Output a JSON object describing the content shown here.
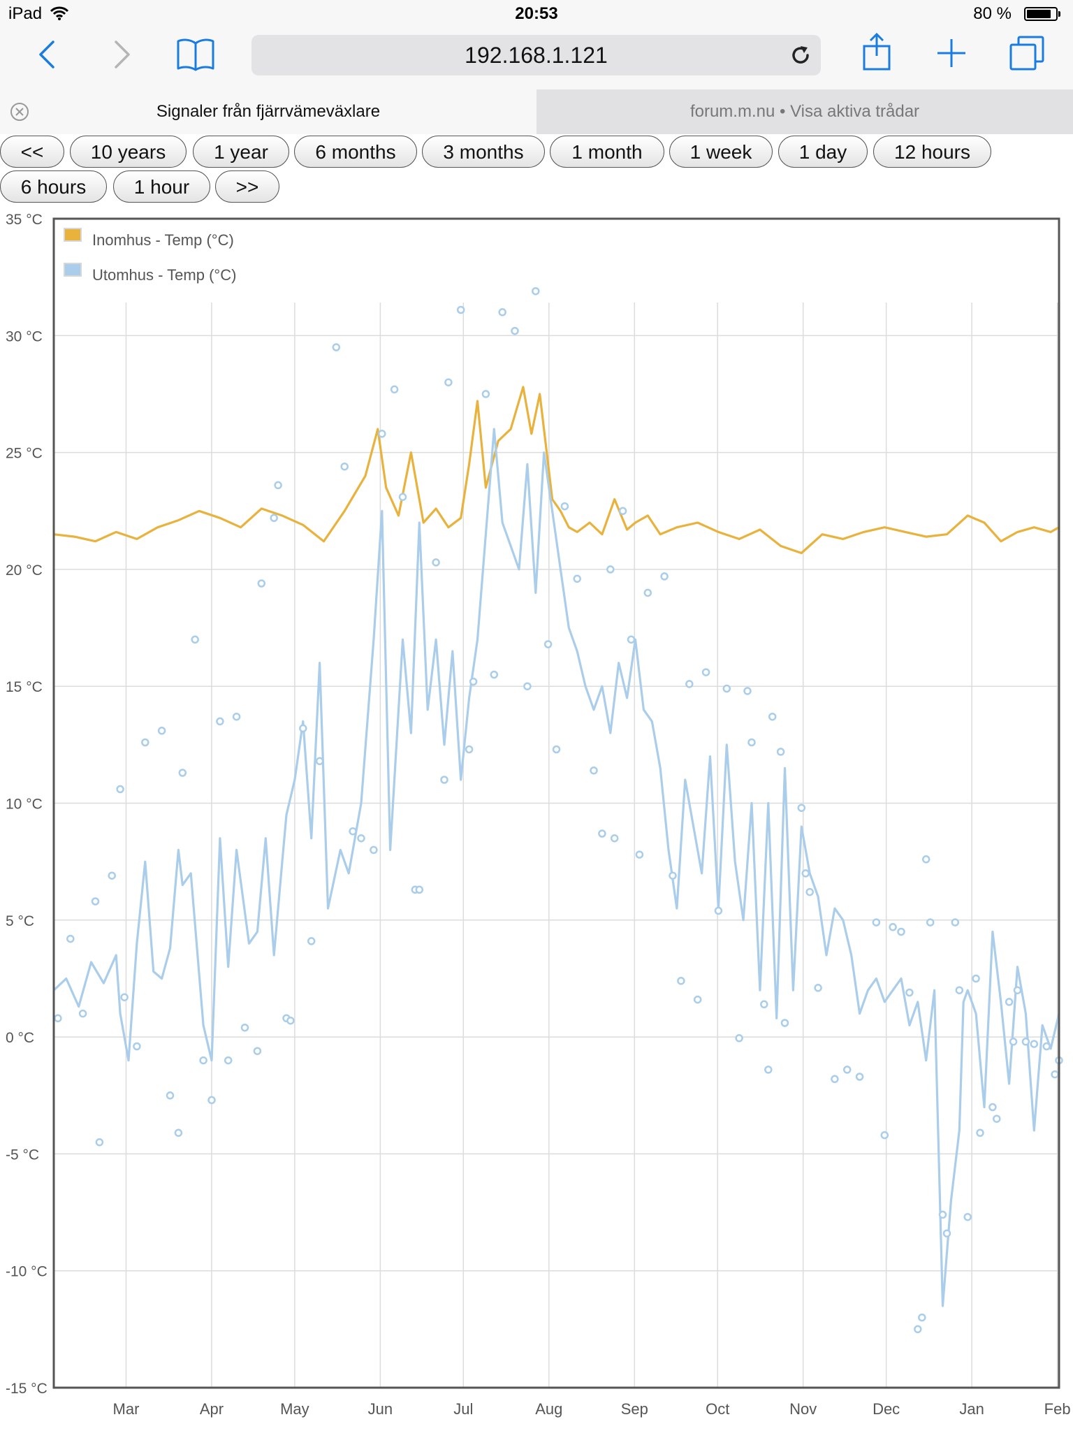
{
  "status_bar": {
    "device": "iPad",
    "time": "20:53",
    "battery": "80 %"
  },
  "browser": {
    "url": "192.168.1.121",
    "tabs": [
      {
        "label": "Signaler från fjärrvämeväxlare",
        "active": true
      },
      {
        "label": "forum.m.nu • Visa aktiva trådar",
        "active": false
      }
    ]
  },
  "range_buttons": [
    "<<",
    "10 years",
    "1 year",
    "6 months",
    "3 months",
    "1 month",
    "1 week",
    "1 day",
    "12 hours",
    "6 hours",
    "1 hour",
    ">>"
  ],
  "chart_data": {
    "type": "line",
    "title": "",
    "ylim": [
      -15,
      35
    ],
    "yticks": [
      35,
      30,
      25,
      20,
      15,
      10,
      5,
      0,
      -5,
      -10,
      -15
    ],
    "ytick_labels": [
      "35 °C",
      "30 °C",
      "25 °C",
      "20 °C",
      "15 °C",
      "10 °C",
      "5 °C",
      "0 °C",
      "-5 °C",
      "-10 °C",
      "-15 °C"
    ],
    "xlim": [
      0,
      12.1
    ],
    "xticks": [
      {
        "label": "Mar",
        "pos": 0.87
      },
      {
        "label": "Apr",
        "pos": 1.9
      },
      {
        "label": "May",
        "pos": 2.9
      },
      {
        "label": "Jun",
        "pos": 3.93
      },
      {
        "label": "Jul",
        "pos": 4.93
      },
      {
        "label": "Aug",
        "pos": 5.96
      },
      {
        "label": "Sep",
        "pos": 6.99
      },
      {
        "label": "Oct",
        "pos": 7.99
      },
      {
        "label": "Nov",
        "pos": 9.02
      },
      {
        "label": "Dec",
        "pos": 10.02
      },
      {
        "label": "Jan",
        "pos": 11.05
      },
      {
        "label": "Feb",
        "pos": 12.08
      }
    ],
    "legend": [
      "Inomhus - Temp (°C)",
      "Utomhus - Temp (°C)"
    ],
    "legend_position": "top-left",
    "grid": true,
    "series": [
      {
        "name": "Inomhus - Temp (°C)",
        "color": "#e8b23c",
        "x": [
          0,
          0.25,
          0.5,
          0.75,
          1.0,
          1.25,
          1.5,
          1.75,
          2.0,
          2.25,
          2.5,
          2.75,
          3.0,
          3.25,
          3.5,
          3.75,
          3.9,
          4.0,
          4.15,
          4.3,
          4.45,
          4.6,
          4.75,
          4.9,
          5.0,
          5.1,
          5.2,
          5.35,
          5.5,
          5.65,
          5.75,
          5.85,
          6.0,
          6.1,
          6.2,
          6.3,
          6.45,
          6.6,
          6.75,
          6.9,
          7.0,
          7.15,
          7.3,
          7.5,
          7.75,
          8.0,
          8.25,
          8.5,
          8.75,
          9.0,
          9.25,
          9.5,
          9.75,
          10.0,
          10.25,
          10.5,
          10.75,
          11.0,
          11.2,
          11.4,
          11.6,
          11.8,
          12.0,
          12.1
        ],
        "values": [
          21.5,
          21.4,
          21.2,
          21.6,
          21.3,
          21.8,
          22.1,
          22.5,
          22.2,
          21.8,
          22.6,
          22.3,
          21.9,
          21.2,
          22.5,
          24.0,
          26.0,
          23.5,
          22.3,
          25.0,
          22.0,
          22.6,
          21.8,
          22.2,
          24.5,
          27.2,
          23.5,
          25.5,
          26.0,
          27.8,
          25.8,
          27.5,
          23.0,
          22.5,
          21.8,
          21.6,
          22.0,
          21.5,
          23.0,
          21.7,
          22.0,
          22.3,
          21.5,
          21.8,
          22.0,
          21.6,
          21.3,
          21.7,
          21.0,
          20.7,
          21.5,
          21.3,
          21.6,
          21.8,
          21.6,
          21.4,
          21.5,
          22.3,
          22.0,
          21.2,
          21.6,
          21.8,
          21.6,
          21.8
        ]
      },
      {
        "name": "Utomhus - Temp (°C)",
        "color": "#a9cdea",
        "x": [
          0,
          0.15,
          0.3,
          0.45,
          0.6,
          0.75,
          0.8,
          0.9,
          1.0,
          1.1,
          1.2,
          1.3,
          1.4,
          1.5,
          1.55,
          1.65,
          1.8,
          1.9,
          2.0,
          2.1,
          2.2,
          2.35,
          2.45,
          2.55,
          2.65,
          2.75,
          2.8,
          2.9,
          3.0,
          3.1,
          3.2,
          3.3,
          3.45,
          3.55,
          3.7,
          3.85,
          3.95,
          4.05,
          4.2,
          4.3,
          4.4,
          4.5,
          4.6,
          4.7,
          4.8,
          4.9,
          5.0,
          5.1,
          5.2,
          5.3,
          5.4,
          5.5,
          5.6,
          5.7,
          5.8,
          5.9,
          6.0,
          6.1,
          6.2,
          6.3,
          6.4,
          6.5,
          6.6,
          6.7,
          6.8,
          6.9,
          7.0,
          7.1,
          7.2,
          7.3,
          7.4,
          7.5,
          7.6,
          7.7,
          7.8,
          7.9,
          8.0,
          8.1,
          8.2,
          8.3,
          8.4,
          8.5,
          8.6,
          8.7,
          8.8,
          8.9,
          9.0,
          9.1,
          9.2,
          9.3,
          9.4,
          9.5,
          9.6,
          9.7,
          9.8,
          9.9,
          10.0,
          10.1,
          10.2,
          10.3,
          10.4,
          10.5,
          10.6,
          10.7,
          10.8,
          10.9,
          10.95,
          11.0,
          11.1,
          11.2,
          11.3,
          11.4,
          11.5,
          11.6,
          11.7,
          11.8,
          11.9,
          12.0,
          12.1
        ],
        "values": [
          2.0,
          2.5,
          1.3,
          3.2,
          2.3,
          3.5,
          1.0,
          -1.0,
          4.0,
          7.5,
          2.8,
          2.5,
          3.8,
          8.0,
          6.5,
          7.0,
          0.5,
          -1.0,
          8.5,
          3.0,
          8.0,
          4.0,
          4.5,
          8.5,
          3.5,
          7.5,
          9.5,
          11.0,
          13.5,
          8.5,
          16.0,
          5.5,
          8.0,
          7.0,
          10.0,
          17.0,
          22.5,
          8.0,
          17.0,
          13.0,
          22.0,
          14.0,
          17.0,
          12.5,
          16.5,
          11.0,
          14.5,
          17.0,
          21.5,
          26.0,
          22.0,
          21.0,
          20.0,
          24.5,
          19.0,
          25.0,
          22.5,
          20.0,
          17.5,
          16.5,
          15.0,
          14.0,
          15.0,
          13.0,
          16.0,
          14.5,
          17.0,
          14.0,
          13.5,
          11.5,
          8.0,
          5.5,
          11.0,
          9.0,
          7.0,
          12.0,
          5.5,
          12.5,
          7.5,
          5.0,
          10.0,
          2.0,
          10.0,
          0.8,
          11.5,
          2.0,
          9.0,
          7.0,
          6.0,
          3.5,
          5.5,
          5.0,
          3.5,
          1.0,
          2.0,
          2.5,
          1.5,
          2.0,
          2.5,
          0.5,
          1.5,
          -1.0,
          2.0,
          -11.5,
          -7.0,
          -4.0,
          1.5,
          2.0,
          1.0,
          -3.0,
          4.5,
          1.5,
          -2.0,
          3.0,
          1.0,
          -4.0,
          0.5,
          -0.5,
          1.0
        ]
      },
      {
        "name": "Utomhus - Temp (°C) points",
        "legend": false,
        "color": "#a9cdea",
        "x": [
          0.05,
          0.2,
          0.35,
          0.5,
          0.55,
          0.7,
          0.8,
          0.85,
          1.0,
          1.1,
          1.3,
          1.4,
          1.5,
          1.55,
          1.7,
          1.8,
          1.9,
          2.0,
          2.1,
          2.2,
          2.3,
          2.45,
          2.5,
          2.65,
          2.7,
          2.8,
          2.85,
          3.0,
          3.1,
          3.2,
          3.4,
          3.5,
          3.6,
          3.7,
          3.85,
          3.95,
          4.1,
          4.2,
          4.35,
          4.4,
          4.6,
          4.7,
          4.75,
          4.9,
          5.0,
          5.05,
          5.2,
          5.3,
          5.4,
          5.55,
          5.7,
          5.8,
          5.95,
          6.05,
          6.15,
          6.3,
          6.5,
          6.6,
          6.7,
          6.75,
          6.85,
          6.95,
          7.05,
          7.15,
          7.35,
          7.45,
          7.55,
          7.65,
          7.75,
          7.85,
          8.0,
          8.1,
          8.25,
          8.35,
          8.4,
          8.55,
          8.6,
          8.65,
          8.75,
          8.8,
          9.0,
          9.05,
          9.1,
          9.2,
          9.4,
          9.55,
          9.7,
          9.9,
          10.0,
          10.1,
          10.2,
          10.3,
          10.4,
          10.45,
          10.5,
          10.55,
          10.7,
          10.75,
          10.85,
          10.9,
          11.0,
          11.1,
          11.15,
          11.3,
          11.35,
          11.5,
          11.55,
          11.6,
          11.7,
          11.8,
          11.95,
          12.05,
          12.1
        ],
        "values": [
          0.8,
          4.2,
          1.0,
          5.8,
          -4.5,
          6.9,
          10.6,
          1.7,
          -0.4,
          12.6,
          13.1,
          -2.5,
          -4.1,
          11.3,
          17.0,
          -1.0,
          -2.7,
          13.5,
          -1.0,
          13.7,
          0.4,
          -0.6,
          19.4,
          22.2,
          23.6,
          0.8,
          0.7,
          13.2,
          4.1,
          11.8,
          29.5,
          24.4,
          8.8,
          8.5,
          8.0,
          25.8,
          27.7,
          23.1,
          6.3,
          6.3,
          20.3,
          11.0,
          28.0,
          31.1,
          12.3,
          15.2,
          27.5,
          15.5,
          31.0,
          30.2,
          15.0,
          31.9,
          16.8,
          12.3,
          22.7,
          19.6,
          11.4,
          8.7,
          20.0,
          8.5,
          22.5,
          17.0,
          7.8,
          19.0,
          19.7,
          6.9,
          2.4,
          15.1,
          1.6,
          15.6,
          5.4,
          14.9,
          -0.05,
          14.8,
          12.6,
          1.4,
          -1.4,
          13.7,
          12.2,
          0.6,
          9.8,
          7.0,
          6.2,
          2.1,
          -1.8,
          -1.4,
          -1.7,
          4.9,
          -4.2,
          4.7,
          4.5,
          1.9,
          -12.5,
          -12.0,
          7.6,
          4.9,
          -7.6,
          -8.4,
          4.9,
          2.0,
          -7.7,
          2.5,
          -4.1,
          -3.0,
          -3.5,
          1.5,
          -0.2,
          2.0,
          -0.2,
          -0.3,
          -0.4,
          -1.6,
          -1.0
        ]
      }
    ]
  }
}
